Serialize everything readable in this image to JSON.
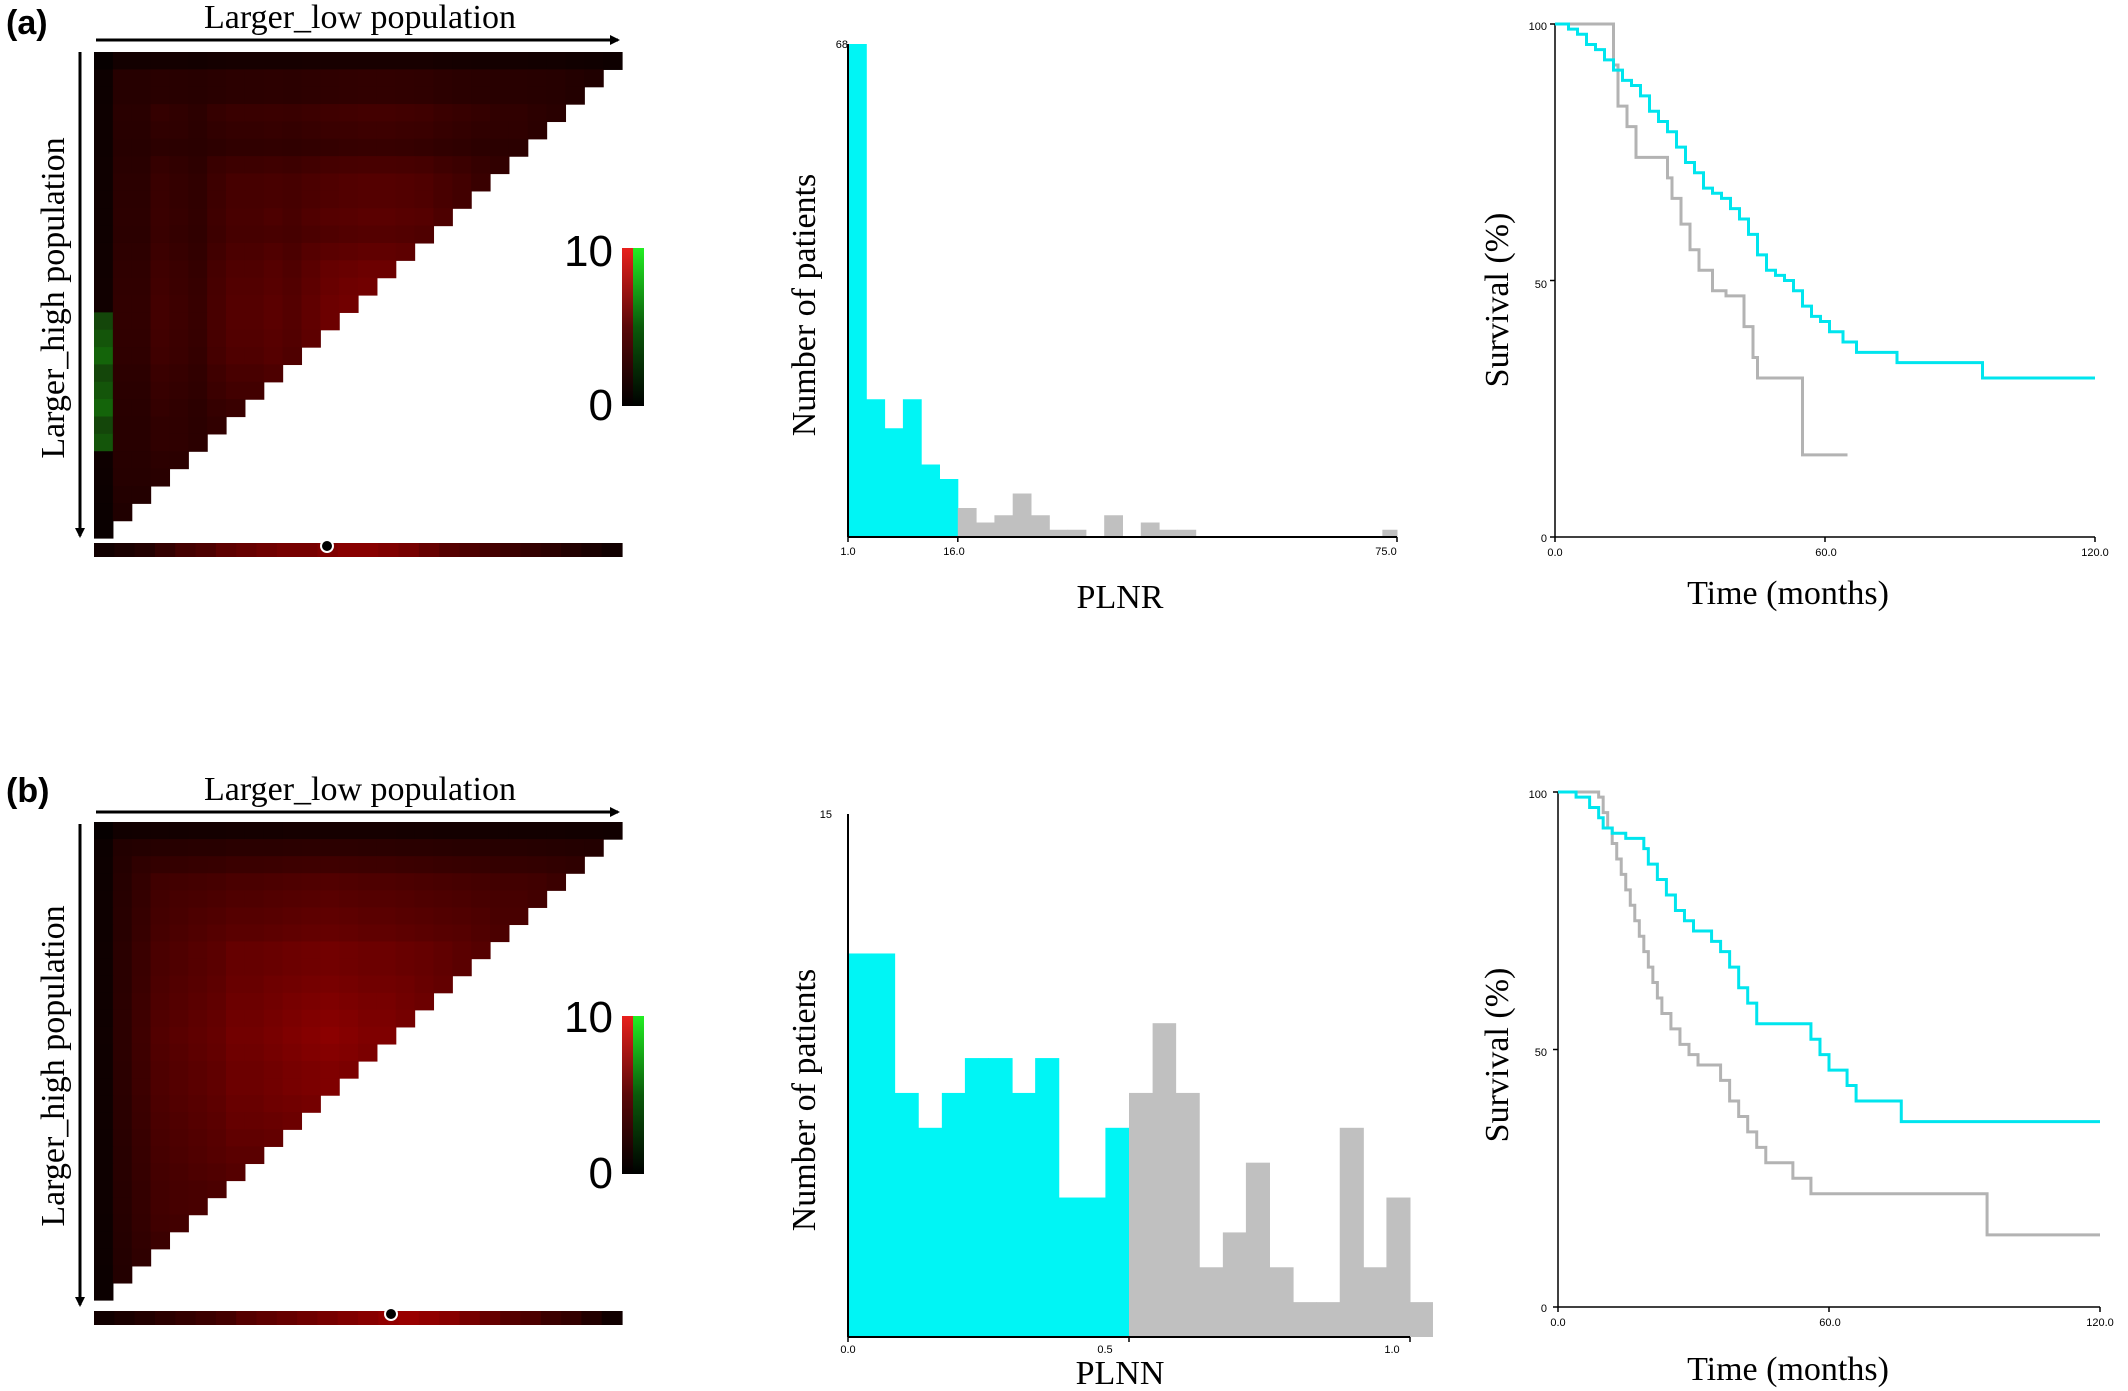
{
  "panels": [
    {
      "id": "a",
      "letter": "(a)",
      "heatmap": {
        "top_label": "Larger_low population",
        "side_label": "Larger_high population",
        "scale_max": "10",
        "scale_min": "0",
        "stripe_profile": [
          0.1,
          0.15,
          0.2,
          0.3,
          0.4,
          0.45,
          0.55,
          0.6,
          0.65,
          0.7,
          0.7,
          0.75,
          0.8,
          0.8,
          0.75,
          0.7,
          0.6,
          0.5,
          0.45,
          0.4,
          0.35,
          0.3,
          0.25,
          0.2,
          0.15,
          0.1
        ],
        "grid_profile": [
          0.2,
          0.2,
          0.35,
          0.3,
          0.25,
          0.4,
          0.5,
          0.55,
          0.5,
          0.6,
          0.7,
          0.75,
          0.8,
          0.75,
          0.7,
          0.55,
          0.45,
          0.35,
          0.3,
          0.25,
          0.2,
          0.15,
          0.1,
          0.05
        ],
        "green_rows": [
          15,
          16,
          17,
          18,
          19,
          20,
          21,
          22
        ]
      },
      "histogram": {
        "type": "bar",
        "title": "",
        "xlabel": "PLNR",
        "ylabel": "Number of patients",
        "x_ticks": [
          "1.0",
          "16.0",
          "75.0"
        ],
        "y_ticks": [
          "68"
        ],
        "xlim": [
          1,
          76
        ],
        "ylim": [
          0,
          68
        ],
        "cutoff": 16,
        "bins": [
          {
            "x0": 1,
            "x1": 3.5,
            "count": 68
          },
          {
            "x0": 3.5,
            "x1": 6,
            "count": 19
          },
          {
            "x0": 6,
            "x1": 8.5,
            "count": 15
          },
          {
            "x0": 8.5,
            "x1": 11,
            "count": 19
          },
          {
            "x0": 11,
            "x1": 13.5,
            "count": 10
          },
          {
            "x0": 13.5,
            "x1": 16,
            "count": 8
          },
          {
            "x0": 16,
            "x1": 18.5,
            "count": 4
          },
          {
            "x0": 18.5,
            "x1": 21,
            "count": 2
          },
          {
            "x0": 21,
            "x1": 23.5,
            "count": 3
          },
          {
            "x0": 23.5,
            "x1": 26,
            "count": 6
          },
          {
            "x0": 26,
            "x1": 28.5,
            "count": 3
          },
          {
            "x0": 28.5,
            "x1": 31,
            "count": 1
          },
          {
            "x0": 31,
            "x1": 33.5,
            "count": 1
          },
          {
            "x0": 33.5,
            "x1": 36,
            "count": 0
          },
          {
            "x0": 36,
            "x1": 38.5,
            "count": 3
          },
          {
            "x0": 38.5,
            "x1": 41,
            "count": 0
          },
          {
            "x0": 41,
            "x1": 43.5,
            "count": 2
          },
          {
            "x0": 43.5,
            "x1": 46,
            "count": 1
          },
          {
            "x0": 46,
            "x1": 48.5,
            "count": 1
          },
          {
            "x0": 74,
            "x1": 76,
            "count": 1
          }
        ],
        "colors": {
          "low": "#00f5f5",
          "high": "#c0c0c0"
        }
      },
      "survival": {
        "type": "line",
        "title": "",
        "xlabel": "Time (months)",
        "ylabel": "Survival (%)",
        "x_ticks": [
          "0.0",
          "60.0",
          "120.0"
        ],
        "y_ticks": [
          "0",
          "50",
          "100"
        ],
        "xlim": [
          0,
          120
        ],
        "ylim": [
          0,
          100
        ],
        "series": [
          {
            "color": "#00e5ee",
            "points": [
              [
                0,
                100
              ],
              [
                3,
                99
              ],
              [
                5,
                98
              ],
              [
                7,
                96
              ],
              [
                9,
                95
              ],
              [
                11,
                93
              ],
              [
                13,
                91
              ],
              [
                15,
                89
              ],
              [
                17,
                88
              ],
              [
                19,
                86
              ],
              [
                21,
                83
              ],
              [
                23,
                81
              ],
              [
                25,
                79
              ],
              [
                27,
                76
              ],
              [
                29,
                73
              ],
              [
                31,
                71
              ],
              [
                33,
                68
              ],
              [
                35,
                67
              ],
              [
                37,
                66
              ],
              [
                39,
                64
              ],
              [
                41,
                62
              ],
              [
                43,
                59
              ],
              [
                45,
                55
              ],
              [
                47,
                52
              ],
              [
                49,
                51
              ],
              [
                51,
                50
              ],
              [
                53,
                48
              ],
              [
                55,
                45
              ],
              [
                57,
                43
              ],
              [
                59,
                42
              ],
              [
                61,
                40
              ],
              [
                64,
                38
              ],
              [
                67,
                36
              ],
              [
                70,
                36
              ],
              [
                76,
                34
              ],
              [
                94,
                34
              ],
              [
                95,
                31
              ],
              [
                120,
                31
              ]
            ]
          },
          {
            "color": "#b3b3b3",
            "points": [
              [
                0,
                100
              ],
              [
                12,
                100
              ],
              [
                13,
                92
              ],
              [
                14,
                84
              ],
              [
                16,
                80
              ],
              [
                18,
                74
              ],
              [
                24,
                74
              ],
              [
                25,
                70
              ],
              [
                26,
                66
              ],
              [
                28,
                61
              ],
              [
                30,
                56
              ],
              [
                32,
                52
              ],
              [
                35,
                48
              ],
              [
                38,
                47
              ],
              [
                41,
                47
              ],
              [
                42,
                41
              ],
              [
                44,
                35
              ],
              [
                45,
                31
              ],
              [
                54,
                31
              ],
              [
                55,
                16
              ],
              [
                65,
                16
              ]
            ]
          }
        ]
      }
    },
    {
      "id": "b",
      "letter": "(b)",
      "heatmap": {
        "top_label": "Larger_low population",
        "side_label": "Larger_high population",
        "scale_max": "10",
        "scale_min": "0",
        "stripe_profile": [
          0.1,
          0.15,
          0.2,
          0.25,
          0.3,
          0.35,
          0.4,
          0.5,
          0.55,
          0.6,
          0.65,
          0.7,
          0.75,
          0.8,
          0.85,
          0.9,
          0.85,
          0.8,
          0.7,
          0.6,
          0.5,
          0.45,
          0.35,
          0.3,
          0.2,
          0.1
        ],
        "grid_profile": [
          0.15,
          0.3,
          0.45,
          0.5,
          0.55,
          0.6,
          0.7,
          0.75,
          0.8,
          0.85,
          0.9,
          0.85,
          0.8,
          0.75,
          0.7,
          0.65,
          0.6,
          0.55,
          0.5,
          0.45,
          0.4,
          0.3,
          0.25,
          0.2
        ],
        "green_rows": []
      },
      "histogram": {
        "type": "bar",
        "title": "",
        "xlabel": "PLNN",
        "ylabel": "Number of patients",
        "x_ticks": [
          "0.0",
          "0.5",
          "1.0"
        ],
        "y_ticks": [
          "15"
        ],
        "xlim": [
          0,
          1.0
        ],
        "ylim": [
          0,
          15
        ],
        "cutoff": 0.5,
        "bins": [
          {
            "x0": 0.0,
            "x1": 0.042,
            "count": 11
          },
          {
            "x0": 0.042,
            "x1": 0.083,
            "count": 11
          },
          {
            "x0": 0.083,
            "x1": 0.125,
            "count": 7
          },
          {
            "x0": 0.125,
            "x1": 0.167,
            "count": 6
          },
          {
            "x0": 0.167,
            "x1": 0.208,
            "count": 7
          },
          {
            "x0": 0.208,
            "x1": 0.25,
            "count": 8
          },
          {
            "x0": 0.25,
            "x1": 0.292,
            "count": 8
          },
          {
            "x0": 0.292,
            "x1": 0.333,
            "count": 7
          },
          {
            "x0": 0.333,
            "x1": 0.375,
            "count": 8
          },
          {
            "x0": 0.375,
            "x1": 0.417,
            "count": 4
          },
          {
            "x0": 0.417,
            "x1": 0.458,
            "count": 4
          },
          {
            "x0": 0.458,
            "x1": 0.5,
            "count": 6
          },
          {
            "x0": 0.5,
            "x1": 0.542,
            "count": 7
          },
          {
            "x0": 0.542,
            "x1": 0.583,
            "count": 9
          },
          {
            "x0": 0.583,
            "x1": 0.625,
            "count": 7
          },
          {
            "x0": 0.625,
            "x1": 0.667,
            "count": 2
          },
          {
            "x0": 0.667,
            "x1": 0.708,
            "count": 3
          },
          {
            "x0": 0.708,
            "x1": 0.75,
            "count": 5
          },
          {
            "x0": 0.75,
            "x1": 0.792,
            "count": 2
          },
          {
            "x0": 0.792,
            "x1": 0.833,
            "count": 1
          },
          {
            "x0": 0.833,
            "x1": 0.875,
            "count": 1
          },
          {
            "x0": 0.875,
            "x1": 0.917,
            "count": 6
          },
          {
            "x0": 0.917,
            "x1": 0.958,
            "count": 2
          },
          {
            "x0": 0.958,
            "x1": 1.0,
            "count": 4
          },
          {
            "x0": 1.0,
            "x1": 1.04,
            "count": 1
          }
        ],
        "colors": {
          "low": "#00f5f5",
          "high": "#c0c0c0"
        }
      },
      "survival": {
        "type": "line",
        "title": "",
        "xlabel": "Time (months)",
        "ylabel": "Survival (%)",
        "x_ticks": [
          "0.0",
          "60.0",
          "120.0"
        ],
        "y_ticks": [
          "0",
          "50",
          "100"
        ],
        "xlim": [
          0,
          120
        ],
        "ylim": [
          0,
          100
        ],
        "series": [
          {
            "color": "#00e5ee",
            "points": [
              [
                0,
                100
              ],
              [
                4,
                99
              ],
              [
                7,
                97
              ],
              [
                9,
                95
              ],
              [
                10,
                93
              ],
              [
                12,
                92
              ],
              [
                15,
                91
              ],
              [
                18,
                91
              ],
              [
                19,
                89
              ],
              [
                20,
                86
              ],
              [
                22,
                83
              ],
              [
                24,
                80
              ],
              [
                26,
                77
              ],
              [
                28,
                75
              ],
              [
                30,
                73
              ],
              [
                32,
                73
              ],
              [
                34,
                71
              ],
              [
                36,
                69
              ],
              [
                38,
                66
              ],
              [
                40,
                62
              ],
              [
                42,
                59
              ],
              [
                44,
                55
              ],
              [
                47,
                55
              ],
              [
                55,
                55
              ],
              [
                56,
                52
              ],
              [
                58,
                49
              ],
              [
                60,
                46
              ],
              [
                62,
                46
              ],
              [
                64,
                43
              ],
              [
                66,
                40
              ],
              [
                74,
                40
              ],
              [
                76,
                36
              ],
              [
                120,
                36
              ]
            ]
          },
          {
            "color": "#b3b3b3",
            "points": [
              [
                0,
                100
              ],
              [
                9,
                99
              ],
              [
                10,
                96
              ],
              [
                11,
                93
              ],
              [
                12,
                90
              ],
              [
                13,
                87
              ],
              [
                14,
                84
              ],
              [
                15,
                81
              ],
              [
                16,
                78
              ],
              [
                17,
                75
              ],
              [
                18,
                72
              ],
              [
                19,
                69
              ],
              [
                20,
                66
              ],
              [
                21,
                63
              ],
              [
                22,
                60
              ],
              [
                23,
                57
              ],
              [
                25,
                54
              ],
              [
                27,
                51
              ],
              [
                29,
                49
              ],
              [
                31,
                47
              ],
              [
                35,
                47
              ],
              [
                36,
                44
              ],
              [
                38,
                40
              ],
              [
                40,
                37
              ],
              [
                42,
                34
              ],
              [
                44,
                31
              ],
              [
                46,
                28
              ],
              [
                50,
                28
              ],
              [
                52,
                25
              ],
              [
                54,
                25
              ],
              [
                56,
                22
              ],
              [
                94,
                22
              ],
              [
                95,
                14
              ],
              [
                120,
                14
              ]
            ]
          }
        ]
      }
    }
  ]
}
